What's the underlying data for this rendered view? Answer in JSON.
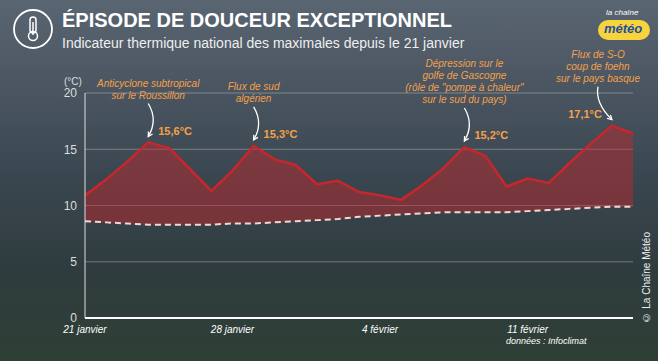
{
  "chart_data": {
    "type": "area",
    "title": "ÉPISODE DE DOUCEUR EXCEPTIONNEL",
    "subtitle": "Indicateur thermique national des maximales depuis le 21 janvier",
    "y_label": "(°C)",
    "categories": [
      "21 janvier",
      null,
      null,
      null,
      null,
      null,
      null,
      "28 janvier",
      null,
      null,
      null,
      null,
      null,
      null,
      "4 février",
      null,
      null,
      null,
      null,
      null,
      null,
      "11 février",
      null,
      null,
      null,
      null,
      null
    ],
    "series": [
      {
        "type": "area",
        "color": "#c8262b",
        "values": [
          10.9,
          12.3,
          13.9,
          15.6,
          15.1,
          13.2,
          11.3,
          13.1,
          15.3,
          14.1,
          13.6,
          11.9,
          12.2,
          11.2,
          10.9,
          10.5,
          11.8,
          13.3,
          15.2,
          14.4,
          11.7,
          12.4,
          12.0,
          13.8,
          15.5,
          17.1,
          16.4
        ],
        "value_labels": [
          null,
          null,
          null,
          "15,6°C",
          null,
          null,
          null,
          null,
          "15,3°C",
          null,
          null,
          null,
          null,
          null,
          null,
          null,
          null,
          null,
          "15,2°C",
          null,
          null,
          null,
          null,
          null,
          null,
          "17,1°C",
          null
        ]
      },
      {
        "type": "line",
        "color": "#f3d6d6",
        "line_style": "dashed",
        "values": [
          8.6,
          8.5,
          8.4,
          8.3,
          8.3,
          8.3,
          8.3,
          8.4,
          8.4,
          8.5,
          8.6,
          8.7,
          8.8,
          9.0,
          9.1,
          9.2,
          9.3,
          9.4,
          9.4,
          9.4,
          9.4,
          9.5,
          9.6,
          9.7,
          9.8,
          9.9,
          9.9
        ]
      }
    ],
    "annotations": [
      [
        "Anticyclone subtropical",
        "sur le Roussillon"
      ],
      [
        "Flux de sud",
        "algérien"
      ],
      [
        "Dépression sur le",
        "golfe de Gascogne",
        "(rôle de \"pompe à chaleur\"",
        "sur le sud du pays)"
      ],
      [
        "Flux de S-O",
        "coup de foehn",
        "sur le pays basque"
      ]
    ],
    "ylim": [
      0,
      20
    ],
    "yticks": [
      0,
      5,
      10,
      15,
      20
    ],
    "grid": true,
    "source": "données : Infoclimat",
    "copyright": "© La Chaîne Météo",
    "logo": [
      "la chaîne",
      "météo"
    ]
  }
}
